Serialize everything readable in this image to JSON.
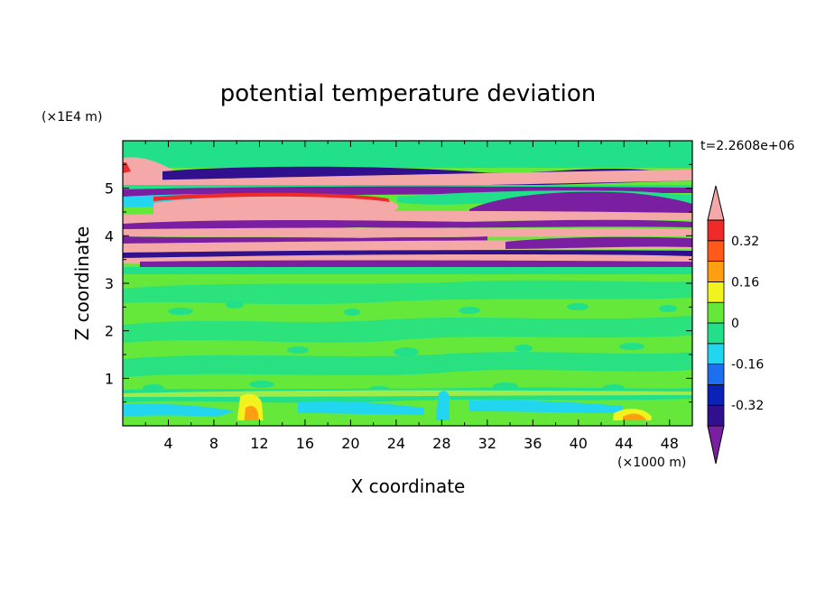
{
  "chart_data": {
    "type": "heatmap",
    "title": "potential temperature deviation",
    "xlabel": "X coordinate",
    "ylabel": "Z coordinate",
    "x_unit": "(×1000 m)",
    "y_unit": "(×1E4 m)",
    "time_label": "t=2.2608e+06",
    "xlim": [
      0,
      50
    ],
    "ylim": [
      0,
      6
    ],
    "x_ticks": [
      4,
      8,
      12,
      16,
      20,
      24,
      28,
      32,
      36,
      40,
      44,
      48
    ],
    "y_ticks": [
      1,
      2,
      3,
      4,
      5
    ],
    "colorbar": {
      "levels": [
        -0.4,
        -0.32,
        -0.24,
        -0.16,
        -0.08,
        0,
        0.08,
        0.16,
        0.24,
        0.32,
        0.4
      ],
      "colors": [
        "#7b1fa2",
        "#30108c",
        "#0a22b8",
        "#1e6ef0",
        "#22d6f0",
        "#22e08a",
        "#66e83a",
        "#f2f21e",
        "#ff9e10",
        "#ff5a1a",
        "#ee2a2a",
        "#f4a8a8"
      ],
      "tick_labels": [
        "0.32",
        "0.16",
        "0",
        "-0.16",
        "-0.32"
      ],
      "tick_values": [
        0.32,
        0.16,
        0,
        -0.16,
        -0.32
      ],
      "extend": "both"
    }
  }
}
